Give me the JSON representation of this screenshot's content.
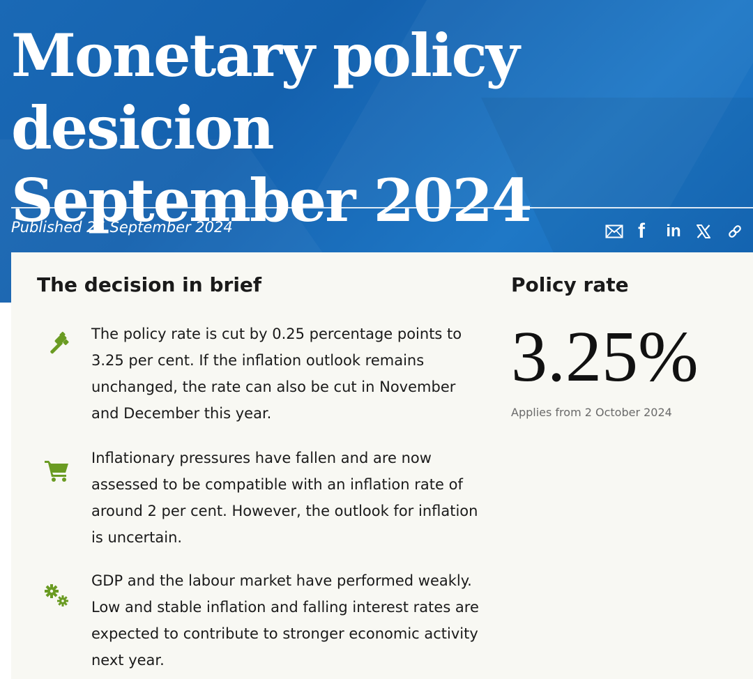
{
  "header": {
    "title_line1": "Monetary policy desicion",
    "title_line2": "September 2024",
    "published": "Published 25 September 2024",
    "share_icons": [
      "mail-icon",
      "facebook-icon",
      "linkedin-icon",
      "x-icon",
      "link-icon"
    ],
    "facebook_glyph": "f",
    "linkedin_glyph": "in"
  },
  "brief": {
    "heading": "The decision in brief",
    "items": [
      {
        "icon": "gavel-icon",
        "text": "The policy rate is cut by 0.25 percentage points to 3.25 per cent. If the inflation outlook remains unchanged, the rate can also be cut in November and December this year."
      },
      {
        "icon": "shopping-cart-icon",
        "text": "Inflationary pressures have fallen and are now assessed to be compatible with an inflation rate of around 2 per cent. However, the outlook for inflation is uncertain."
      },
      {
        "icon": "gears-icon",
        "text": "GDP and the labour market have performed weakly. Low and stable inflation and falling interest rates are expected to contribute to stronger economic activity next year."
      }
    ]
  },
  "policy_rate": {
    "heading": "Policy rate",
    "value": "3.25%",
    "applies": "Applies from 2 October 2024"
  },
  "colors": {
    "hero_blue": "#1a69b5",
    "card_background": "#f8f8f3",
    "icon_green": "#6a9b22"
  }
}
